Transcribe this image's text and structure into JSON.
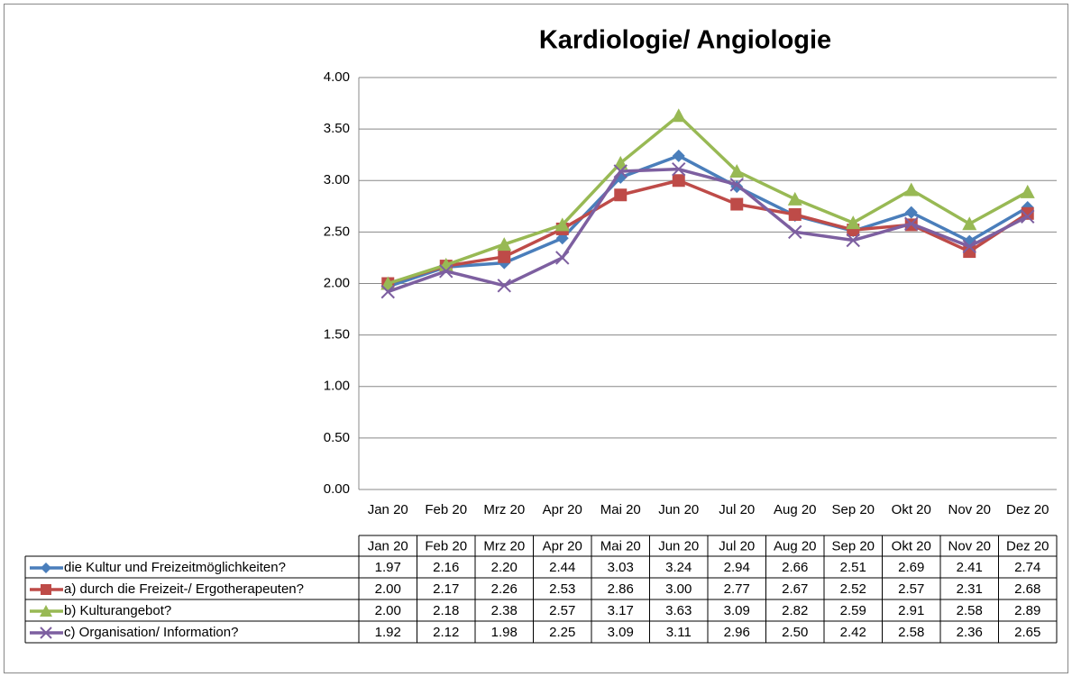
{
  "chart_data": {
    "type": "line",
    "title": "Kardiologie/ Angiologie",
    "categories": [
      "Jan 20",
      "Feb 20",
      "Mrz 20",
      "Apr 20",
      "Mai 20",
      "Jun 20",
      "Jul 20",
      "Aug 20",
      "Sep 20",
      "Okt 20",
      "Nov 20",
      "Dez 20"
    ],
    "ylim": [
      0,
      4
    ],
    "yticks": [
      {
        "value": 0,
        "label": "0.00"
      },
      {
        "value": 0.5,
        "label": "0.50"
      },
      {
        "value": 1,
        "label": "1.00"
      },
      {
        "value": 1.5,
        "label": "1.50"
      },
      {
        "value": 2,
        "label": "2.00"
      },
      {
        "value": 2.5,
        "label": "2.50"
      },
      {
        "value": 3,
        "label": "3.00"
      },
      {
        "value": 3.5,
        "label": "3.50"
      },
      {
        "value": 4,
        "label": "4.00"
      }
    ],
    "grid": true,
    "series": [
      {
        "name": "die Kultur und Freizeitmöglichkeiten?",
        "color": "#4a7ebb",
        "marker": "diamond",
        "values": [
          1.97,
          2.16,
          2.2,
          2.44,
          3.03,
          3.24,
          2.94,
          2.66,
          2.51,
          2.69,
          2.41,
          2.74
        ],
        "value_labels": [
          "1.97",
          "2.16",
          "2.20",
          "2.44",
          "3.03",
          "3.24",
          "2.94",
          "2.66",
          "2.51",
          "2.69",
          "2.41",
          "2.74"
        ]
      },
      {
        "name": "a) durch die Freizeit-/ Ergotherapeuten?",
        "color": "#be4b48",
        "marker": "square",
        "values": [
          2.0,
          2.17,
          2.26,
          2.53,
          2.86,
          3.0,
          2.77,
          2.67,
          2.52,
          2.57,
          2.31,
          2.68
        ],
        "value_labels": [
          "2.00",
          "2.17",
          "2.26",
          "2.53",
          "2.86",
          "3.00",
          "2.77",
          "2.67",
          "2.52",
          "2.57",
          "2.31",
          "2.68"
        ]
      },
      {
        "name": "b) Kulturangebot?",
        "color": "#98b954",
        "marker": "triangle",
        "values": [
          2.0,
          2.18,
          2.38,
          2.57,
          3.17,
          3.63,
          3.09,
          2.82,
          2.59,
          2.91,
          2.58,
          2.89
        ],
        "value_labels": [
          "2.00",
          "2.18",
          "2.38",
          "2.57",
          "3.17",
          "3.63",
          "3.09",
          "2.82",
          "2.59",
          "2.91",
          "2.58",
          "2.89"
        ]
      },
      {
        "name": "c) Organisation/ Information?",
        "color": "#7d5fa0",
        "marker": "x",
        "values": [
          1.92,
          2.12,
          1.98,
          2.25,
          3.09,
          3.11,
          2.96,
          2.5,
          2.42,
          2.58,
          2.36,
          2.65
        ],
        "value_labels": [
          "1.92",
          "2.12",
          "1.98",
          "2.25",
          "3.09",
          "3.11",
          "2.96",
          "2.50",
          "2.42",
          "2.58",
          "2.36",
          "2.65"
        ]
      }
    ]
  }
}
